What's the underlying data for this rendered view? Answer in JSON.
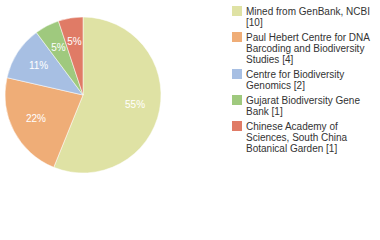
{
  "chart_data": {
    "type": "pie",
    "categories": [
      "Mined from GenBank, NCBI [10]",
      "Paul Hebert Centre for DNA Barcoding and Biodiversity Studies [4]",
      "Centre for Biodiversity Genomics [2]",
      "Gujarat Biodiversity Gene Bank [1]",
      "Chinese Academy of Sciences, South China Botanical Garden [1]"
    ],
    "values": [
      55,
      22,
      11,
      5,
      5
    ],
    "value_labels": [
      "55%",
      "22%",
      "11%",
      "5%",
      "5%"
    ],
    "colors": [
      "#dfe2a4",
      "#efad77",
      "#a7bfe3",
      "#9fc97e",
      "#e07b66"
    ],
    "data_labels": true,
    "legend": "right"
  }
}
